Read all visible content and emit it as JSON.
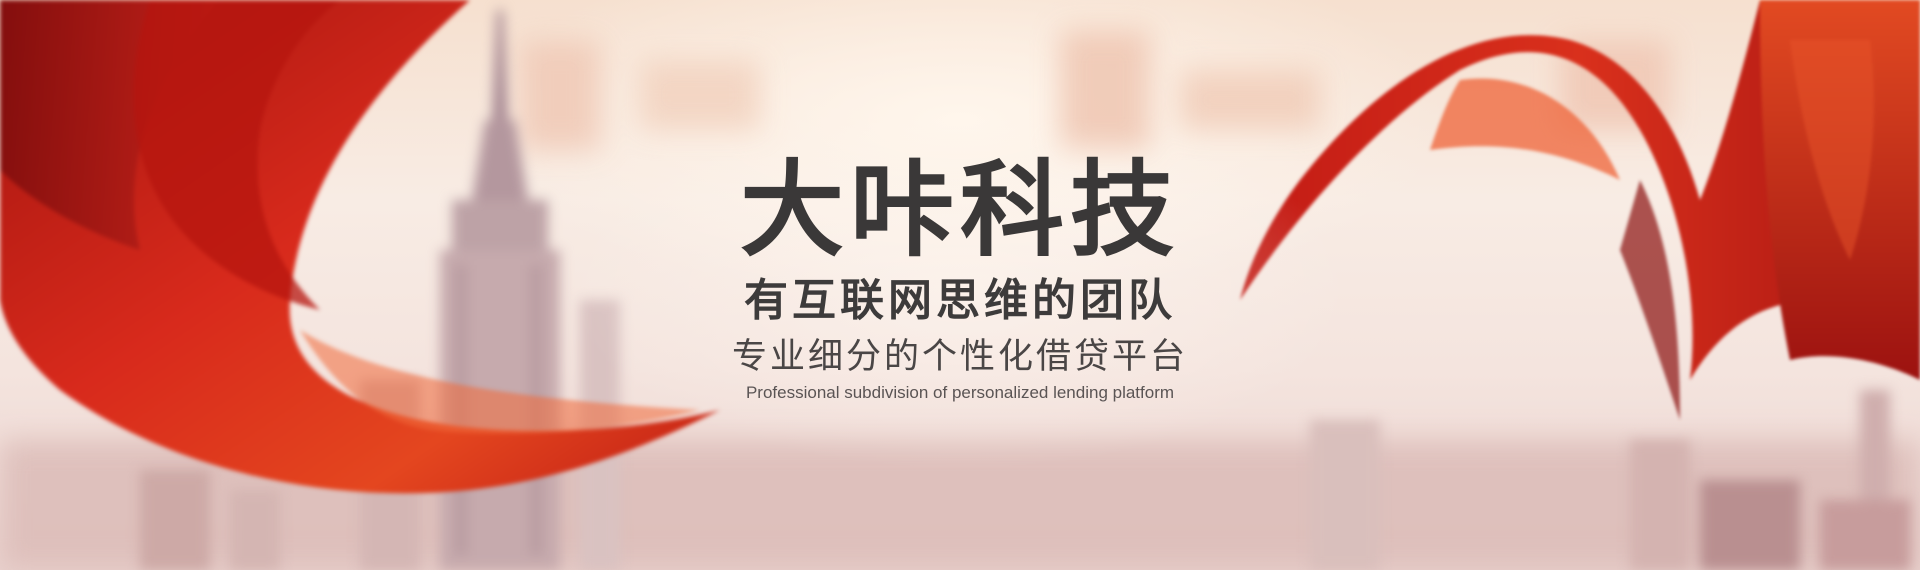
{
  "banner": {
    "title": "大咔科技",
    "subtitle": "有互联网思维的团队",
    "tagline": "专业细分的个性化借贷平台",
    "tagline_en": "Professional subdivision of personalized lending platform"
  },
  "colors": {
    "ribbon_red": "#d4201a",
    "ribbon_dark": "#8e0f10",
    "text_dark": "#3a3838",
    "background": "#f3e6de"
  }
}
